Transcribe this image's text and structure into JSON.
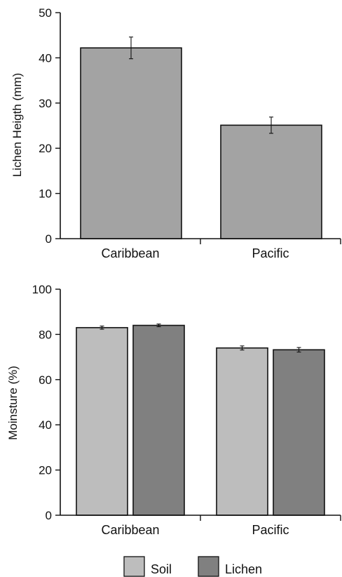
{
  "chart_data": [
    {
      "type": "bar",
      "categories": [
        "Caribbean",
        "Pacific"
      ],
      "series": [
        {
          "values": [
            42.2,
            25.1
          ],
          "errors": [
            2.4,
            1.8
          ]
        }
      ],
      "ylabel": "Lichen Heigth (mm)",
      "ylim": [
        0,
        50
      ],
      "yticks": [
        0,
        10,
        20,
        30,
        40,
        50
      ],
      "grid": false,
      "colors": {
        "bar": "#a3a3a3"
      }
    },
    {
      "type": "bar",
      "categories": [
        "Caribbean",
        "Pacific"
      ],
      "series": [
        {
          "name": "Soil",
          "values": [
            83,
            74
          ],
          "errors": [
            0.7,
            0.9
          ]
        },
        {
          "name": "Lichen",
          "values": [
            84,
            73.2
          ],
          "errors": [
            0.6,
            1.0
          ]
        }
      ],
      "ylabel": "Moinsture (%)",
      "ylim": [
        0,
        100
      ],
      "yticks": [
        0,
        20,
        40,
        60,
        80,
        100
      ],
      "grid": false,
      "legend": "bottom-center",
      "colors": {
        "Soil": "#bdbdbd",
        "Lichen": "#808080"
      }
    }
  ]
}
